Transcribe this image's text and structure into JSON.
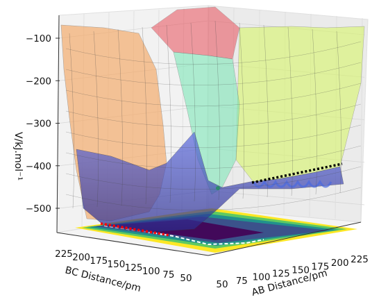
{
  "chart_data": {
    "type": "surface",
    "projection": "3d",
    "xlabel": "AB Distance/pm",
    "ylabel": "BC Distance/pm",
    "zlabel": "V/kj.mol$^{-1}$",
    "zlabel_display": "V/kJ.mol⁻¹",
    "x_ticks": [
      "50",
      "75",
      "100",
      "125",
      "150",
      "175",
      "200",
      "225"
    ],
    "y_ticks": [
      "225",
      "200",
      "175",
      "150",
      "125",
      "100",
      "75",
      "50"
    ],
    "z_ticks": [
      "−100",
      "−200",
      "−300",
      "−400",
      "−500"
    ],
    "z_tick_values": [
      -100,
      -200,
      -300,
      -400,
      -500
    ],
    "xlim": [
      50,
      240
    ],
    "ylim": [
      50,
      240
    ],
    "zlim": [
      -560,
      -80
    ],
    "colormap": "viridis",
    "trajectories": [
      {
        "name": "reactant path",
        "color": "#ff0000",
        "style": "dotted"
      },
      {
        "name": "product path",
        "color": "#000000",
        "style": "dotted"
      }
    ],
    "marker": {
      "color": "#2d8a6b"
    },
    "grid": true
  }
}
